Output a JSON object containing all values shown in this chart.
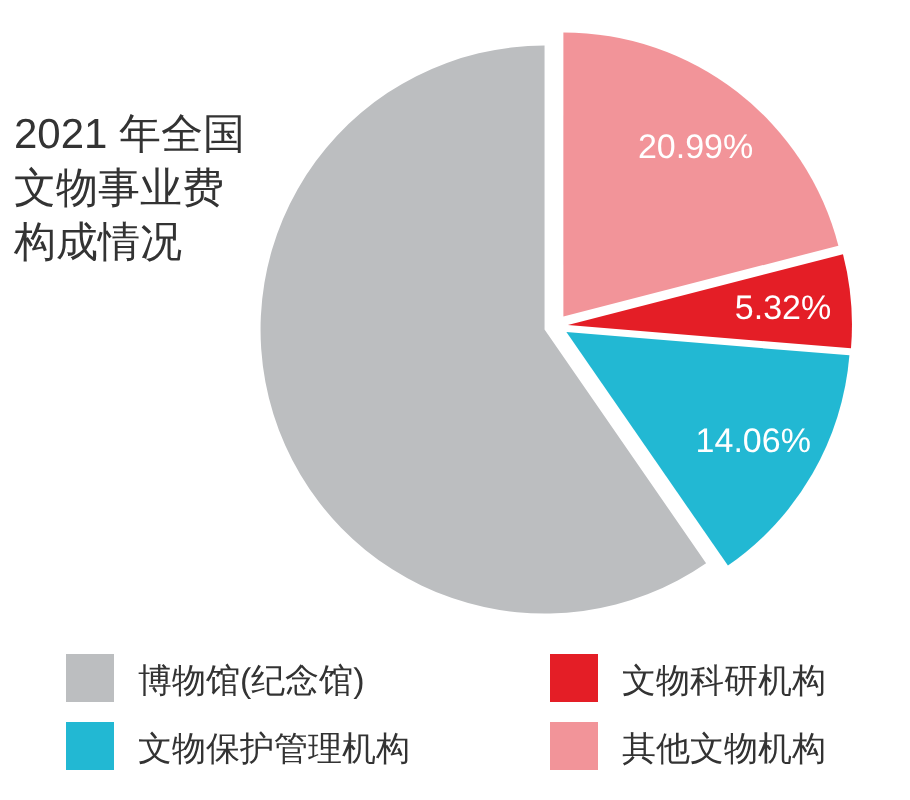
{
  "chart_data": {
    "type": "pie",
    "title": "2021 年全国文物事业费构成情况",
    "categories": [
      "其他文物机构",
      "文物科研机构",
      "文物保护管理机构",
      "博物馆(纪念馆)"
    ],
    "values": [
      20.99,
      5.32,
      14.06,
      59.63
    ],
    "colors": [
      "#f29499",
      "#e41e26",
      "#22b8d3",
      "#bcbec0"
    ],
    "value_labels": [
      "20.99%",
      "5.32%",
      "14.06%",
      null
    ],
    "legend": "bottom"
  }
}
